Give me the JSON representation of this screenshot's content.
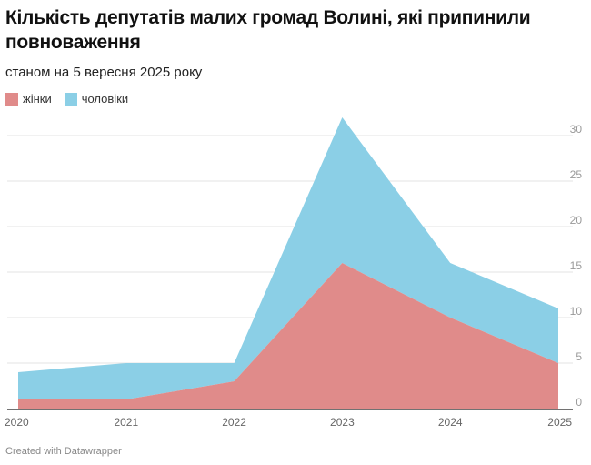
{
  "title": "Кількість депутатів малих громад Волині, які припинили повноваження",
  "subtitle": "станом на 5 вересня 2025 року",
  "footer": "Created with Datawrapper",
  "chart_data": {
    "type": "area",
    "stacked": true,
    "categories": [
      "2020",
      "2021",
      "2022",
      "2023",
      "2024",
      "2025"
    ],
    "series": [
      {
        "name": "жінки",
        "color": "#e08b8a",
        "values": [
          1,
          1,
          3,
          16,
          10,
          5
        ]
      },
      {
        "name": "чоловіки",
        "color": "#8bcfe6",
        "values": [
          3,
          4,
          2,
          16,
          6,
          6
        ]
      }
    ],
    "ylim": [
      0,
      30
    ],
    "yticks": [
      "0",
      "5",
      "10",
      "15",
      "20",
      "25",
      "30"
    ],
    "grid": true,
    "y_axis_side": "right",
    "legend": "top-left"
  }
}
